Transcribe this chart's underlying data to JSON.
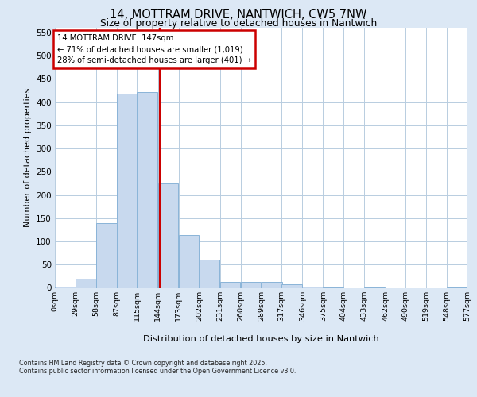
{
  "title_line1": "14, MOTTRAM DRIVE, NANTWICH, CW5 7NW",
  "title_line2": "Size of property relative to detached houses in Nantwich",
  "xlabel": "Distribution of detached houses by size in Nantwich",
  "ylabel": "Number of detached properties",
  "bin_edges": [
    0,
    29,
    58,
    87,
    115,
    144,
    173,
    202,
    231,
    260,
    289,
    317,
    346,
    375,
    404,
    433,
    462,
    490,
    519,
    548,
    577
  ],
  "bar_heights": [
    2,
    20,
    140,
    418,
    422,
    225,
    113,
    60,
    13,
    13,
    13,
    7,
    2,
    1,
    0,
    1,
    0,
    0,
    0,
    1
  ],
  "bar_color": "#c8d9ee",
  "bar_edge_color": "#8ab4d8",
  "property_size": 147,
  "red_line_color": "#cc0000",
  "annotation_line1": "14 MOTTRAM DRIVE: 147sqm",
  "annotation_line2": "← 71% of detached houses are smaller (1,019)",
  "annotation_line3": "28% of semi-detached houses are larger (401) →",
  "annotation_box_edge_color": "#cc0000",
  "ylim": [
    0,
    560
  ],
  "yticks": [
    0,
    50,
    100,
    150,
    200,
    250,
    300,
    350,
    400,
    450,
    500,
    550
  ],
  "tick_labels": [
    "0sqm",
    "29sqm",
    "58sqm",
    "87sqm",
    "115sqm",
    "144sqm",
    "173sqm",
    "202sqm",
    "231sqm",
    "260sqm",
    "289sqm",
    "317sqm",
    "346sqm",
    "375sqm",
    "404sqm",
    "433sqm",
    "462sqm",
    "490sqm",
    "519sqm",
    "548sqm",
    "577sqm"
  ],
  "footer_line1": "Contains HM Land Registry data © Crown copyright and database right 2025.",
  "footer_line2": "Contains public sector information licensed under the Open Government Licence v3.0.",
  "background_color": "#dce8f5",
  "plot_background_color": "#ffffff",
  "grid_color": "#b8cde0"
}
